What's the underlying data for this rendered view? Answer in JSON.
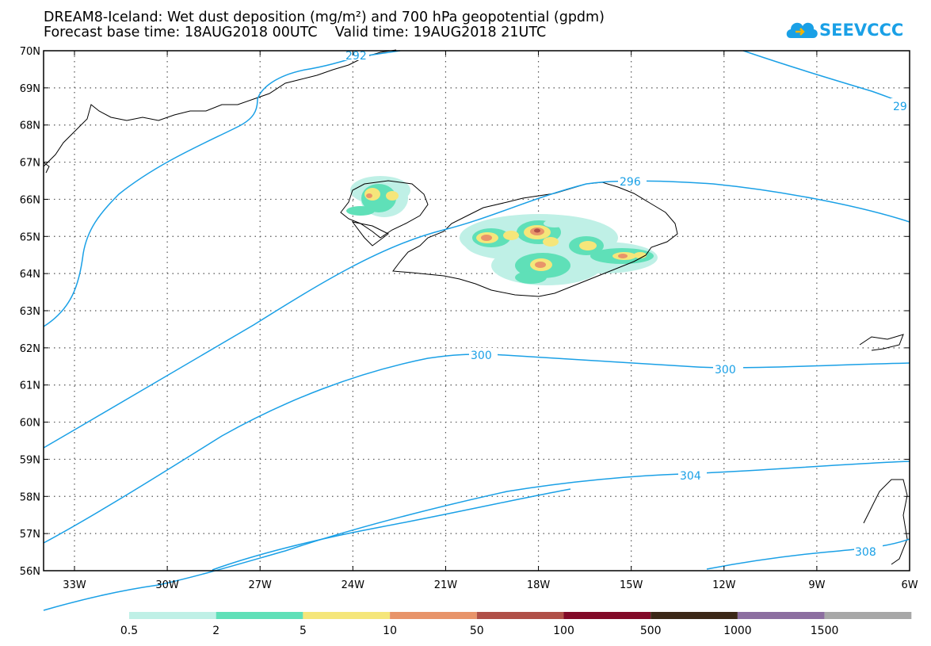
{
  "title": {
    "line1": "DREAM8-Iceland: Wet dust deposition (mg/m²) and 700 hPa geopotential (gpdm)",
    "line2": "Forecast base time: 18AUG2018 00UTC    Valid time: 19AUG2018 21UTC"
  },
  "logo": {
    "text": "SEEVCCC",
    "icon": "cloud-icon",
    "color": "#1aa0e6"
  },
  "map": {
    "lat_labels": [
      "70N",
      "69N",
      "68N",
      "67N",
      "66N",
      "65N",
      "64N",
      "63N",
      "62N",
      "61N",
      "60N",
      "59N",
      "58N",
      "57N",
      "56N"
    ],
    "lon_labels": [
      "33W",
      "30W",
      "27W",
      "24W",
      "21W",
      "18W",
      "15W",
      "12W",
      "9W",
      "6W"
    ],
    "contour_color": "#1aa0e6",
    "contour_labels": [
      "292",
      "29",
      "296",
      "300",
      "300",
      "304",
      "308"
    ]
  },
  "legend": {
    "colors": [
      "#bff0e6",
      "#5fe0b8",
      "#f5e67a",
      "#e8946a",
      "#b05048",
      "#820a28",
      "#3c2818",
      "#8c6ea0",
      "#a8a8a8"
    ],
    "labels": [
      "0.5",
      "2",
      "5",
      "10",
      "50",
      "100",
      "500",
      "1000",
      "1500"
    ]
  }
}
